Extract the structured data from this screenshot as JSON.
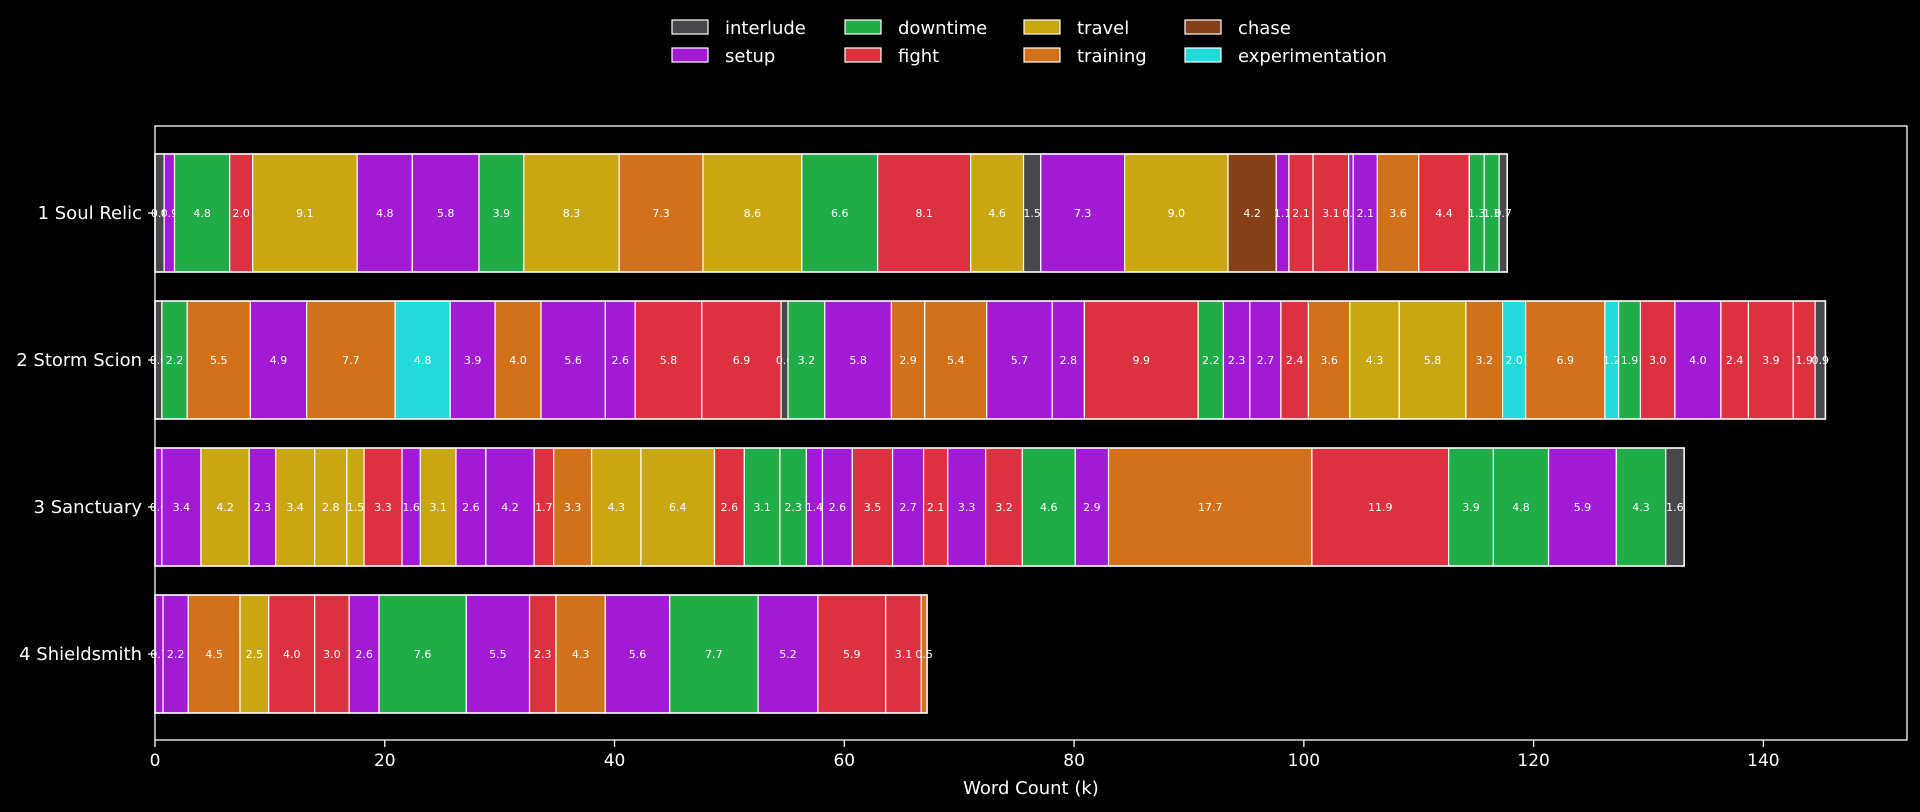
{
  "chart_data": {
    "type": "bar",
    "orientation": "horizontal",
    "stacked": true,
    "xlabel": "Word Count (k)",
    "ylabel": "",
    "xlim": [
      0,
      152.5
    ],
    "xticks": [
      0,
      20,
      40,
      60,
      80,
      100,
      120,
      140
    ],
    "grid": false,
    "legend_position": "top-center",
    "colors": {
      "interlude": "#48484c",
      "setup": "#a21ad4",
      "downtime": "#20ad48",
      "fight": "#dc3240",
      "travel": "#c9a712",
      "training": "#d3701a",
      "chase": "#864018",
      "experimentation": "#22dada"
    },
    "legend": [
      "interlude",
      "setup",
      "downtime",
      "fight",
      "travel",
      "training",
      "chase",
      "experimentation"
    ],
    "categories": [
      "1 Soul Relic",
      "2 Storm Scion",
      "3 Sanctuary",
      "4 Shieldsmith"
    ],
    "rows": [
      {
        "label": "1 Soul Relic",
        "segments": [
          {
            "type": "interlude",
            "value": 0.8,
            "label": "0.8"
          },
          {
            "type": "setup",
            "value": 0.9,
            "label": "0.9"
          },
          {
            "type": "downtime",
            "value": 4.8,
            "label": "4.8"
          },
          {
            "type": "fight",
            "value": 2.0,
            "label": "2.0"
          },
          {
            "type": "travel",
            "value": 9.1,
            "label": "9.1"
          },
          {
            "type": "setup",
            "value": 4.8,
            "label": "4.8"
          },
          {
            "type": "setup",
            "value": 5.8,
            "label": "5.8"
          },
          {
            "type": "downtime",
            "value": 3.9,
            "label": "3.9"
          },
          {
            "type": "travel",
            "value": 8.3,
            "label": "8.3"
          },
          {
            "type": "training",
            "value": 7.3,
            "label": "7.3"
          },
          {
            "type": "travel",
            "value": 8.6,
            "label": "8.6"
          },
          {
            "type": "downtime",
            "value": 6.6,
            "label": "6.6"
          },
          {
            "type": "fight",
            "value": 8.1,
            "label": "8.1"
          },
          {
            "type": "travel",
            "value": 4.6,
            "label": "4.6"
          },
          {
            "type": "interlude",
            "value": 1.5,
            "label": "1.5"
          },
          {
            "type": "setup",
            "value": 7.3,
            "label": "7.3"
          },
          {
            "type": "travel",
            "value": 9.0,
            "label": "9.0"
          },
          {
            "type": "chase",
            "value": 4.2,
            "label": "4.2"
          },
          {
            "type": "setup",
            "value": 1.1,
            "label": "1.1"
          },
          {
            "type": "fight",
            "value": 2.1,
            "label": "2.1"
          },
          {
            "type": "fight",
            "value": 3.1,
            "label": "3.1"
          },
          {
            "type": "setup",
            "value": 0.4,
            "label": "0.4"
          },
          {
            "type": "setup",
            "value": 2.1,
            "label": "2.1"
          },
          {
            "type": "training",
            "value": 3.6,
            "label": "3.6"
          },
          {
            "type": "fight",
            "value": 4.4,
            "label": "4.4"
          },
          {
            "type": "downtime",
            "value": 1.3,
            "label": "1.3"
          },
          {
            "type": "downtime",
            "value": 1.3,
            "label": "1.3"
          },
          {
            "type": "interlude",
            "value": 0.7,
            "label": "0.7"
          }
        ]
      },
      {
        "label": "2 Storm Scion",
        "segments": [
          {
            "type": "interlude",
            "value": 0.6,
            "label": "0.6"
          },
          {
            "type": "downtime",
            "value": 2.2,
            "label": "2.2"
          },
          {
            "type": "training",
            "value": 5.5,
            "label": "5.5"
          },
          {
            "type": "setup",
            "value": 4.9,
            "label": "4.9"
          },
          {
            "type": "training",
            "value": 7.7,
            "label": "7.7"
          },
          {
            "type": "experimentation",
            "value": 4.8,
            "label": "4.8"
          },
          {
            "type": "setup",
            "value": 3.9,
            "label": "3.9"
          },
          {
            "type": "training",
            "value": 4.0,
            "label": "4.0"
          },
          {
            "type": "setup",
            "value": 5.6,
            "label": "5.6"
          },
          {
            "type": "setup",
            "value": 2.6,
            "label": "2.6"
          },
          {
            "type": "fight",
            "value": 5.8,
            "label": "5.8"
          },
          {
            "type": "fight",
            "value": 6.9,
            "label": "6.9"
          },
          {
            "type": "interlude",
            "value": 0.6,
            "label": "0.6"
          },
          {
            "type": "downtime",
            "value": 3.2,
            "label": "3.2"
          },
          {
            "type": "setup",
            "value": 5.8,
            "label": "5.8"
          },
          {
            "type": "training",
            "value": 2.9,
            "label": "2.9"
          },
          {
            "type": "training",
            "value": 5.4,
            "label": "5.4"
          },
          {
            "type": "setup",
            "value": 5.7,
            "label": "5.7"
          },
          {
            "type": "setup",
            "value": 2.8,
            "label": "2.8"
          },
          {
            "type": "fight",
            "value": 9.9,
            "label": "9.9"
          },
          {
            "type": "downtime",
            "value": 2.2,
            "label": "2.2"
          },
          {
            "type": "setup",
            "value": 2.3,
            "label": "2.3"
          },
          {
            "type": "setup",
            "value": 2.7,
            "label": "2.7"
          },
          {
            "type": "fight",
            "value": 2.4,
            "label": "2.4"
          },
          {
            "type": "training",
            "value": 3.6,
            "label": "3.6"
          },
          {
            "type": "travel",
            "value": 4.3,
            "label": "4.3"
          },
          {
            "type": "travel",
            "value": 5.8,
            "label": "5.8"
          },
          {
            "type": "training",
            "value": 3.2,
            "label": "3.2"
          },
          {
            "type": "experimentation",
            "value": 2.0,
            "label": "2.0"
          },
          {
            "type": "training",
            "value": 6.9,
            "label": "6.9"
          },
          {
            "type": "experimentation",
            "value": 1.2,
            "label": "1.2"
          },
          {
            "type": "downtime",
            "value": 1.9,
            "label": "1.9"
          },
          {
            "type": "fight",
            "value": 3.0,
            "label": "3.0"
          },
          {
            "type": "setup",
            "value": 4.0,
            "label": "4.0"
          },
          {
            "type": "fight",
            "value": 2.4,
            "label": "2.4"
          },
          {
            "type": "fight",
            "value": 3.9,
            "label": "3.9"
          },
          {
            "type": "fight",
            "value": 1.9,
            "label": "1.9"
          },
          {
            "type": "interlude",
            "value": 0.9,
            "label": "0.9"
          }
        ]
      },
      {
        "label": "3 Sanctuary",
        "segments": [
          {
            "type": "setup",
            "value": 0.6,
            "label": "0.6"
          },
          {
            "type": "setup",
            "value": 3.4,
            "label": "3.4"
          },
          {
            "type": "travel",
            "value": 4.2,
            "label": "4.2"
          },
          {
            "type": "setup",
            "value": 2.3,
            "label": "2.3"
          },
          {
            "type": "travel",
            "value": 3.4,
            "label": "3.4"
          },
          {
            "type": "travel",
            "value": 2.8,
            "label": "2.8"
          },
          {
            "type": "travel",
            "value": 1.5,
            "label": "1.5"
          },
          {
            "type": "fight",
            "value": 3.3,
            "label": "3.3"
          },
          {
            "type": "setup",
            "value": 1.6,
            "label": "1.6"
          },
          {
            "type": "travel",
            "value": 3.1,
            "label": "3.1"
          },
          {
            "type": "setup",
            "value": 2.6,
            "label": "2.6"
          },
          {
            "type": "setup",
            "value": 4.2,
            "label": "4.2"
          },
          {
            "type": "fight",
            "value": 1.7,
            "label": "1.7"
          },
          {
            "type": "training",
            "value": 3.3,
            "label": "3.3"
          },
          {
            "type": "travel",
            "value": 4.3,
            "label": "4.3"
          },
          {
            "type": "travel",
            "value": 6.4,
            "label": "6.4"
          },
          {
            "type": "fight",
            "value": 2.6,
            "label": "2.6"
          },
          {
            "type": "downtime",
            "value": 3.1,
            "label": "3.1"
          },
          {
            "type": "downtime",
            "value": 2.3,
            "label": "2.3"
          },
          {
            "type": "setup",
            "value": 1.4,
            "label": "1.4"
          },
          {
            "type": "setup",
            "value": 2.6,
            "label": "2.6"
          },
          {
            "type": "fight",
            "value": 3.5,
            "label": "3.5"
          },
          {
            "type": "setup",
            "value": 2.7,
            "label": "2.7"
          },
          {
            "type": "fight",
            "value": 2.1,
            "label": "2.1"
          },
          {
            "type": "setup",
            "value": 3.3,
            "label": "3.3"
          },
          {
            "type": "fight",
            "value": 3.2,
            "label": "3.2"
          },
          {
            "type": "downtime",
            "value": 4.6,
            "label": "4.6"
          },
          {
            "type": "setup",
            "value": 2.9,
            "label": "2.9"
          },
          {
            "type": "training",
            "value": 17.7,
            "label": "17.7"
          },
          {
            "type": "fight",
            "value": 11.9,
            "label": "11.9"
          },
          {
            "type": "downtime",
            "value": 3.9,
            "label": "3.9"
          },
          {
            "type": "downtime",
            "value": 4.8,
            "label": "4.8"
          },
          {
            "type": "setup",
            "value": 5.9,
            "label": "5.9"
          },
          {
            "type": "downtime",
            "value": 4.3,
            "label": "4.3"
          },
          {
            "type": "interlude",
            "value": 1.6,
            "label": "1.6"
          }
        ]
      },
      {
        "label": "4 Shieldsmith",
        "segments": [
          {
            "type": "setup",
            "value": 0.7,
            "label": "0.7"
          },
          {
            "type": "setup",
            "value": 2.2,
            "label": "2.2"
          },
          {
            "type": "training",
            "value": 4.5,
            "label": "4.5"
          },
          {
            "type": "travel",
            "value": 2.5,
            "label": "2.5"
          },
          {
            "type": "fight",
            "value": 4.0,
            "label": "4.0"
          },
          {
            "type": "fight",
            "value": 3.0,
            "label": "3.0"
          },
          {
            "type": "setup",
            "value": 2.6,
            "label": "2.6"
          },
          {
            "type": "downtime",
            "value": 7.6,
            "label": "7.6"
          },
          {
            "type": "setup",
            "value": 5.5,
            "label": "5.5"
          },
          {
            "type": "fight",
            "value": 2.3,
            "label": "2.3"
          },
          {
            "type": "training",
            "value": 4.3,
            "label": "4.3"
          },
          {
            "type": "setup",
            "value": 5.6,
            "label": "5.6"
          },
          {
            "type": "downtime",
            "value": 7.7,
            "label": "7.7"
          },
          {
            "type": "setup",
            "value": 5.2,
            "label": "5.2"
          },
          {
            "type": "fight",
            "value": 5.9,
            "label": "5.9"
          },
          {
            "type": "fight",
            "value": 3.1,
            "label": "3.1"
          },
          {
            "type": "training",
            "value": 0.5,
            "label": "0.5"
          }
        ]
      }
    ]
  }
}
